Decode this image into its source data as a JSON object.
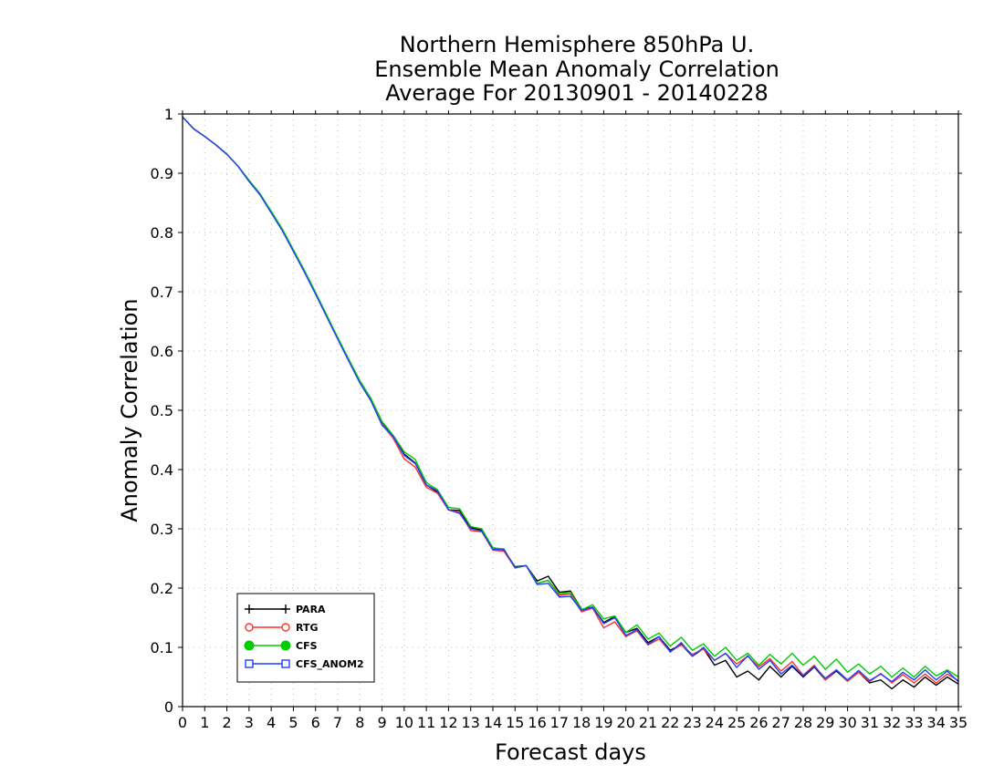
{
  "chart_data": {
    "type": "line",
    "title": [
      "Northern Hemisphere 850hPa U.",
      "Ensemble Mean Anomaly Correlation",
      "Average For 20130901 - 20140228"
    ],
    "xlabel": "Forecast days",
    "ylabel": "Anomaly Correlation",
    "xlim": [
      0,
      35
    ],
    "ylim": [
      0,
      1
    ],
    "x_ticks": [
      0,
      1,
      2,
      3,
      4,
      5,
      6,
      7,
      8,
      9,
      10,
      11,
      12,
      13,
      14,
      15,
      16,
      17,
      18,
      19,
      20,
      21,
      22,
      23,
      24,
      25,
      26,
      27,
      28,
      29,
      30,
      31,
      32,
      33,
      34,
      35
    ],
    "x_tick_labels": [
      "0",
      "1",
      "2",
      "3",
      "4",
      "5",
      "6",
      "7",
      "8",
      "9",
      "10",
      "11",
      "12",
      "13",
      "14",
      "15",
      "16",
      "17",
      "18",
      "19",
      "20",
      "21",
      "22",
      "23",
      "24",
      "25",
      "26",
      "27",
      "28",
      "29",
      "30",
      "31",
      "32",
      "33",
      "34",
      "35"
    ],
    "y_ticks": [
      0,
      0.1,
      0.2,
      0.3,
      0.4,
      0.5,
      0.6,
      0.7,
      0.8,
      0.9,
      1
    ],
    "y_tick_labels": [
      "0",
      "0.1",
      "0.2",
      "0.3",
      "0.4",
      "0.5",
      "0.6",
      "0.7",
      "0.8",
      "0.9",
      "1"
    ],
    "grid": true,
    "legend_position": "bottom-left",
    "x": [
      0,
      0.5,
      1,
      1.5,
      2,
      2.5,
      3,
      3.5,
      4,
      4.5,
      5,
      5.5,
      6,
      6.5,
      7,
      7.5,
      8,
      8.5,
      9,
      9.5,
      10,
      10.5,
      11,
      11.5,
      12,
      12.5,
      13,
      13.5,
      14,
      14.5,
      15,
      15.5,
      16,
      16.5,
      17,
      17.5,
      18,
      18.5,
      19,
      19.5,
      20,
      20.5,
      21,
      21.5,
      22,
      22.5,
      23,
      23.5,
      24,
      24.5,
      25,
      25.5,
      26,
      26.5,
      27,
      27.5,
      28,
      28.5,
      29,
      29.5,
      30,
      30.5,
      31,
      31.5,
      32,
      32.5,
      33,
      33.5,
      34,
      34.5,
      35
    ],
    "series": [
      {
        "name": "PARA",
        "color": "#000000",
        "marker": "plus",
        "values": [
          0.995,
          0.975,
          0.962,
          0.948,
          0.932,
          0.912,
          0.888,
          0.865,
          0.835,
          0.805,
          0.77,
          0.735,
          0.698,
          0.66,
          0.622,
          0.585,
          0.548,
          0.518,
          0.48,
          0.457,
          0.426,
          0.411,
          0.374,
          0.362,
          0.332,
          0.331,
          0.302,
          0.298,
          0.268,
          0.264,
          0.236,
          0.238,
          0.212,
          0.22,
          0.193,
          0.195,
          0.164,
          0.168,
          0.142,
          0.152,
          0.125,
          0.132,
          0.108,
          0.118,
          0.095,
          0.105,
          0.085,
          0.098,
          0.07,
          0.078,
          0.05,
          0.06,
          0.045,
          0.068,
          0.05,
          0.068,
          0.05,
          0.067,
          0.045,
          0.06,
          0.043,
          0.058,
          0.04,
          0.045,
          0.03,
          0.045,
          0.033,
          0.05,
          0.036,
          0.05,
          0.038
        ]
      },
      {
        "name": "RTG",
        "color": "#ff3030",
        "marker": "open-circle",
        "values": [
          0.995,
          0.975,
          0.962,
          0.948,
          0.932,
          0.912,
          0.887,
          0.864,
          0.834,
          0.804,
          0.769,
          0.734,
          0.697,
          0.659,
          0.621,
          0.584,
          0.547,
          0.516,
          0.476,
          0.453,
          0.418,
          0.404,
          0.37,
          0.36,
          0.332,
          0.328,
          0.297,
          0.295,
          0.264,
          0.262,
          0.234,
          0.238,
          0.208,
          0.213,
          0.188,
          0.19,
          0.16,
          0.166,
          0.133,
          0.143,
          0.118,
          0.128,
          0.104,
          0.114,
          0.093,
          0.104,
          0.088,
          0.097,
          0.078,
          0.09,
          0.072,
          0.085,
          0.067,
          0.081,
          0.06,
          0.076,
          0.053,
          0.07,
          0.045,
          0.062,
          0.043,
          0.058,
          0.042,
          0.056,
          0.04,
          0.054,
          0.04,
          0.055,
          0.04,
          0.055,
          0.044
        ]
      },
      {
        "name": "CFS",
        "color": "#00cc00",
        "marker": "filled-circle",
        "values": [
          0.995,
          0.975,
          0.962,
          0.948,
          0.932,
          0.912,
          0.888,
          0.865,
          0.836,
          0.806,
          0.771,
          0.736,
          0.699,
          0.661,
          0.623,
          0.586,
          0.55,
          0.52,
          0.481,
          0.458,
          0.43,
          0.417,
          0.378,
          0.366,
          0.336,
          0.334,
          0.304,
          0.3,
          0.268,
          0.266,
          0.234,
          0.238,
          0.208,
          0.213,
          0.19,
          0.193,
          0.163,
          0.172,
          0.148,
          0.153,
          0.125,
          0.138,
          0.114,
          0.124,
          0.102,
          0.117,
          0.095,
          0.106,
          0.085,
          0.1,
          0.078,
          0.09,
          0.07,
          0.088,
          0.072,
          0.09,
          0.07,
          0.085,
          0.063,
          0.08,
          0.058,
          0.072,
          0.055,
          0.068,
          0.05,
          0.065,
          0.05,
          0.068,
          0.052,
          0.062,
          0.05
        ]
      },
      {
        "name": "CFS_ANOM2",
        "color": "#2040ff",
        "marker": "open-square",
        "values": [
          0.995,
          0.975,
          0.962,
          0.948,
          0.932,
          0.912,
          0.886,
          0.863,
          0.833,
          0.803,
          0.768,
          0.733,
          0.696,
          0.658,
          0.62,
          0.583,
          0.546,
          0.516,
          0.475,
          0.456,
          0.424,
          0.41,
          0.374,
          0.364,
          0.332,
          0.326,
          0.3,
          0.296,
          0.265,
          0.265,
          0.235,
          0.238,
          0.206,
          0.208,
          0.185,
          0.186,
          0.162,
          0.168,
          0.14,
          0.15,
          0.12,
          0.13,
          0.105,
          0.118,
          0.092,
          0.108,
          0.085,
          0.1,
          0.078,
          0.09,
          0.066,
          0.086,
          0.063,
          0.078,
          0.055,
          0.07,
          0.052,
          0.068,
          0.048,
          0.062,
          0.045,
          0.061,
          0.044,
          0.055,
          0.042,
          0.058,
          0.045,
          0.062,
          0.045,
          0.06,
          0.042
        ]
      }
    ]
  }
}
